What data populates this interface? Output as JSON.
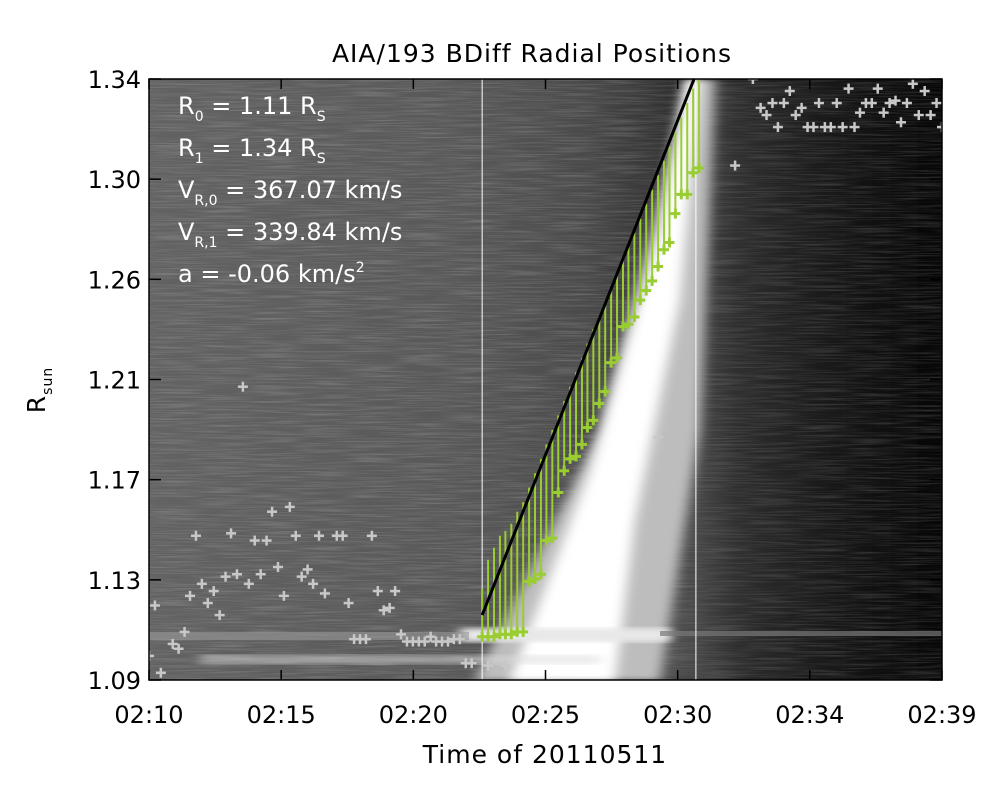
{
  "chart_data": {
    "type": "scatter",
    "title": "AIA/193 BDiff Radial Positions",
    "xlabel": "Time of 20110511",
    "ylabel": {
      "main": "R",
      "sub": "sun"
    },
    "x_tick_labels": [
      "02:10",
      "02:15",
      "02:20",
      "02:25",
      "02:30",
      "02:34",
      "02:39"
    ],
    "y_tick_labels": [
      "1.09",
      "1.13",
      "1.17",
      "1.21",
      "1.26",
      "1.30",
      "1.34"
    ],
    "xlim": [
      "02:10",
      "02:39"
    ],
    "ylim": [
      1.09,
      1.34
    ],
    "annotations": [
      {
        "main": "R",
        "sub": "0",
        "rest": " = 1.11 R",
        "sub2": "S"
      },
      {
        "main": "R",
        "sub": "1",
        "rest": " = 1.34 R",
        "sub2": "S"
      },
      {
        "main": "V",
        "sub": "R,0",
        "rest": " = 367.07 km/s"
      },
      {
        "main": "V",
        "sub": "R,1",
        "rest": " = 339.84 km/s"
      },
      {
        "main": "a",
        "rest": " = -0.06 km/s",
        "sup": "2"
      }
    ],
    "vertical_markers": [
      "02:22:11",
      "02:30:00"
    ],
    "fit_line": {
      "x": [
        "02:22:11",
        "02:29:56"
      ],
      "y": [
        1.117,
        1.34
      ]
    },
    "front_points": {
      "color": "#9acd32",
      "x": [
        "02:22:11",
        "02:22:24",
        "02:22:37",
        "02:22:50",
        "02:23:02",
        "02:23:15",
        "02:23:28",
        "02:23:41",
        "02:23:54",
        "02:24:07",
        "02:24:20",
        "02:24:32",
        "02:24:45",
        "02:24:58",
        "02:25:11",
        "02:25:24",
        "02:25:37",
        "02:25:50",
        "02:26:02",
        "02:26:15",
        "02:26:28",
        "02:26:41",
        "02:26:54",
        "02:27:07",
        "02:27:20",
        "02:27:32",
        "02:27:45",
        "02:27:58",
        "02:28:11",
        "02:28:24",
        "02:28:37",
        "02:28:50",
        "02:29:02",
        "02:29:15",
        "02:29:28",
        "02:29:41",
        "02:29:54",
        "02:30:07"
      ],
      "y": [
        1.108,
        1.108,
        1.108,
        1.109,
        1.109,
        1.109,
        1.11,
        1.11,
        1.131,
        1.132,
        1.134,
        1.148,
        1.149,
        1.168,
        1.177,
        1.182,
        1.183,
        1.188,
        1.195,
        1.198,
        1.205,
        1.21,
        1.222,
        1.224,
        1.237,
        1.238,
        1.241,
        1.248,
        1.252,
        1.256,
        1.262,
        1.269,
        1.272,
        1.284,
        1.292,
        1.292,
        1.301,
        1.303
      ],
      "upper_y": [
        1.128,
        1.14,
        1.145,
        1.15,
        1.152,
        1.155,
        1.16,
        1.164,
        1.17,
        1.176,
        1.182,
        1.188,
        1.194,
        1.2,
        1.206,
        1.212,
        1.218,
        1.224,
        1.23,
        1.236,
        1.241,
        1.247,
        1.253,
        1.259,
        1.265,
        1.271,
        1.276,
        1.282,
        1.288,
        1.294,
        1.3,
        1.306,
        1.312,
        1.318,
        1.324,
        1.33,
        1.336,
        1.34
      ]
    },
    "other_points": {
      "color": "#c8c8c8",
      "x": [
        "02:10:00",
        "02:10:13",
        "02:10:26",
        "02:10:52",
        "02:11:05",
        "02:11:18",
        "02:11:30",
        "02:11:43",
        "02:11:56",
        "02:12:09",
        "02:12:22",
        "02:12:35",
        "02:12:48",
        "02:13:00",
        "02:13:13",
        "02:13:26",
        "02:13:39",
        "02:13:52",
        "02:14:05",
        "02:14:18",
        "02:14:30",
        "02:14:43",
        "02:14:56",
        "02:15:09",
        "02:15:22",
        "02:15:35",
        "02:15:48",
        "02:16:00",
        "02:16:13",
        "02:16:26",
        "02:16:52",
        "02:17:05",
        "02:17:18",
        "02:17:30",
        "02:17:43",
        "02:17:56",
        "02:18:09",
        "02:18:22",
        "02:18:35",
        "02:18:48",
        "02:19:00",
        "02:19:13",
        "02:19:26",
        "02:19:39",
        "02:19:52",
        "02:20:05",
        "02:20:18",
        "02:20:30",
        "02:20:43",
        "02:20:56",
        "02:21:09",
        "02:21:22",
        "02:21:35",
        "02:21:48",
        "02:22:24",
        "02:23:02",
        "02:28:37",
        "02:31:26",
        "02:32:05",
        "02:32:22",
        "02:32:35",
        "02:32:48",
        "02:33:00",
        "02:33:13",
        "02:33:26",
        "02:33:39",
        "02:33:52",
        "02:34:05",
        "02:34:18",
        "02:34:30",
        "02:34:43",
        "02:34:56",
        "02:35:09",
        "02:35:22",
        "02:35:35",
        "02:35:48",
        "02:36:00",
        "02:36:13",
        "02:36:26",
        "02:36:39",
        "02:36:52",
        "02:37:05",
        "02:37:18",
        "02:37:30",
        "02:37:43",
        "02:37:56",
        "02:38:09",
        "02:38:22",
        "02:38:35",
        "02:38:48",
        "02:39:00"
      ],
      "y": [
        1.1,
        1.121,
        1.093,
        1.105,
        1.103,
        1.11,
        1.125,
        1.15,
        1.13,
        1.122,
        1.127,
        1.117,
        1.133,
        1.151,
        1.134,
        1.212,
        1.13,
        1.148,
        1.134,
        1.148,
        1.16,
        1.137,
        1.125,
        1.162,
        1.15,
        1.133,
        1.136,
        1.13,
        1.15,
        1.126,
        1.15,
        1.15,
        1.122,
        1.107,
        1.107,
        1.107,
        1.15,
        1.127,
        1.119,
        1.12,
        1.127,
        1.109,
        1.106,
        1.106,
        1.106,
        1.106,
        1.108,
        1.106,
        1.106,
        1.106,
        1.107,
        1.107,
        1.097,
        1.097,
        1.096,
        1.096,
        1.191,
        1.304,
        1.34,
        1.328,
        1.325,
        1.33,
        1.32,
        1.33,
        1.335,
        1.325,
        1.328,
        1.32,
        1.32,
        1.33,
        1.32,
        1.32,
        1.33,
        1.32,
        1.336,
        1.32,
        1.326,
        1.33,
        1.33,
        1.336,
        1.326,
        1.33,
        1.331,
        1.322,
        1.33,
        1.338,
        1.325,
        1.335,
        1.325,
        1.33,
        1.32
      ]
    }
  }
}
